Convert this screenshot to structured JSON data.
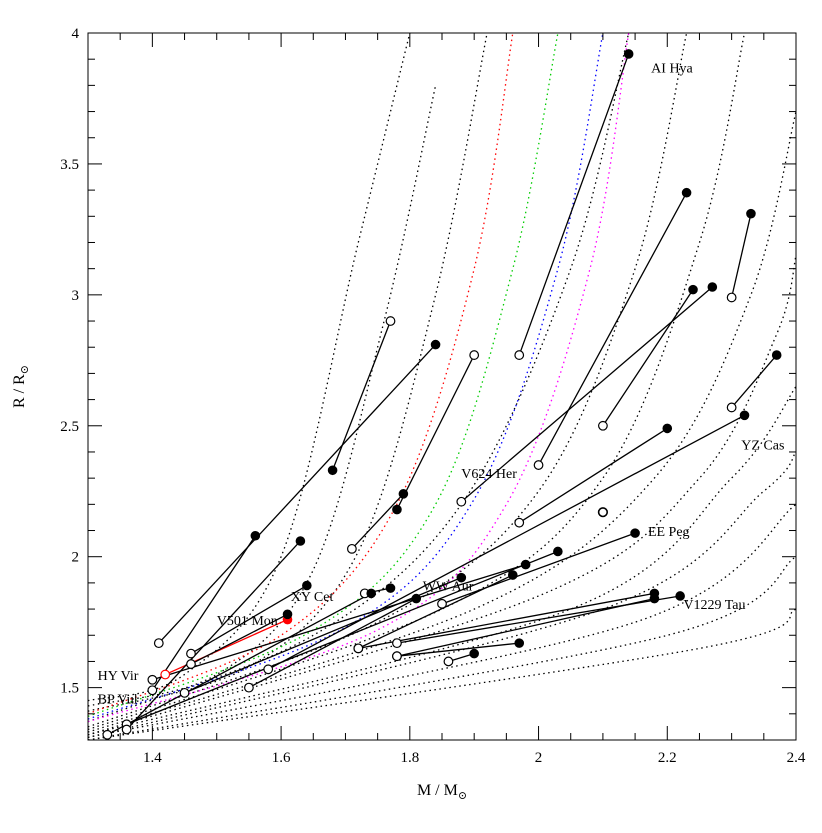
{
  "chart_data": {
    "type": "scatter",
    "xlabel": "M / M",
    "ylabel": "R / R",
    "xlim": [
      1.3,
      2.4
    ],
    "ylim": [
      1.3,
      4.0
    ],
    "x_ticks": [
      "1.4",
      "1.6",
      "1.8",
      "2",
      "2.2",
      "2.4"
    ],
    "y_ticks": [
      "1.5",
      "2",
      "2.5",
      "3",
      "3.5",
      "4"
    ],
    "grid": false,
    "legend": "none",
    "filled_color": "#000000",
    "open_color": "#000000",
    "highlight_color": "#ff0000",
    "systems": [
      {
        "label": "",
        "color": "#000000",
        "primary": [
          1.68,
          2.33
        ],
        "secondary": [
          1.77,
          2.9
        ]
      },
      {
        "label": "",
        "color": "#000000",
        "primary": [
          1.84,
          2.81
        ],
        "secondary": [
          1.41,
          1.67
        ]
      },
      {
        "label": "",
        "color": "#000000",
        "primary": [
          1.78,
          2.18
        ],
        "secondary": [
          1.9,
          2.77
        ]
      },
      {
        "label": "",
        "color": "#000000",
        "primary": [
          1.79,
          2.24
        ],
        "secondary": [
          1.71,
          2.03
        ]
      },
      {
        "label": "AI Hya",
        "color": "#000000",
        "primary": [
          2.14,
          3.92
        ],
        "secondary": [
          1.97,
          2.77
        ]
      },
      {
        "label": "",
        "color": "#000000",
        "primary": [
          2.23,
          3.39
        ],
        "secondary": [
          2.0,
          2.35
        ]
      },
      {
        "label": "",
        "color": "#000000",
        "primary": [
          2.33,
          3.31
        ],
        "secondary": [
          2.3,
          2.99
        ]
      },
      {
        "label": "",
        "color": "#000000",
        "primary": [
          2.24,
          3.02
        ],
        "secondary": [
          2.1,
          2.5
        ]
      },
      {
        "label": "V624 Her",
        "color": "#000000",
        "primary": [
          2.27,
          3.03
        ],
        "secondary": [
          1.88,
          2.21
        ]
      },
      {
        "label": "YZ Cas",
        "color": "#000000",
        "primary": [
          2.37,
          2.77
        ],
        "secondary": [
          2.3,
          2.57
        ]
      },
      {
        "label": "",
        "color": "#000000",
        "primary": [
          2.32,
          2.54
        ],
        "secondary": [
          1.58,
          1.57
        ]
      },
      {
        "label": "",
        "color": "#000000",
        "primary": [
          2.2,
          2.49
        ],
        "secondary": [
          1.97,
          2.13
        ]
      },
      {
        "label": "EE Peg",
        "color": "#000000",
        "primary": [
          2.15,
          2.09
        ],
        "secondary": [
          1.85,
          1.82
        ]
      },
      {
        "label": "",
        "color": "#000000",
        "primary": [
          2.03,
          2.02
        ],
        "secondary": [
          1.36,
          1.36
        ]
      },
      {
        "label": "",
        "color": "#000000",
        "primary": [
          1.98,
          1.97
        ],
        "secondary": [
          1.4,
          1.53
        ]
      },
      {
        "label": "WW Aur",
        "color": "#000000",
        "primary": [
          1.96,
          1.93
        ],
        "secondary": [
          1.72,
          1.65
        ]
      },
      {
        "label": "",
        "color": "#000000",
        "primary": [
          1.88,
          1.92
        ],
        "secondary": [
          1.45,
          1.48
        ]
      },
      {
        "label": "",
        "color": "#000000",
        "primary": [
          1.81,
          1.84
        ],
        "secondary": [
          1.55,
          1.5
        ]
      },
      {
        "label": "XY Cet",
        "color": "#000000",
        "primary": [
          1.77,
          1.88
        ],
        "secondary": [
          1.73,
          1.86
        ]
      },
      {
        "label": "",
        "color": "#000000",
        "primary": [
          1.74,
          1.86
        ],
        "secondary": [
          1.33,
          1.32
        ]
      },
      {
        "label": "",
        "color": "#000000",
        "primary": [
          1.64,
          1.89
        ],
        "secondary": [
          1.46,
          1.63
        ]
      },
      {
        "label": "V501 Mon",
        "color": "#ff0000",
        "primary": [
          1.61,
          1.76
        ],
        "secondary": [
          1.42,
          1.55
        ]
      },
      {
        "label": "",
        "color": "#000000",
        "primary": [
          1.61,
          1.78
        ],
        "secondary": [
          1.46,
          1.59
        ]
      },
      {
        "label": "HY Vir",
        "color": "#000000",
        "primary": [
          1.56,
          2.08
        ],
        "secondary": [
          1.4,
          1.49
        ]
      },
      {
        "label": "BP Vul",
        "color": "#000000",
        "primary": [
          1.63,
          2.06
        ],
        "secondary": [
          1.36,
          1.34
        ]
      },
      {
        "label": "",
        "color": "#000000",
        "primary": [
          2.18,
          1.86
        ],
        "secondary": [
          1.72,
          1.65
        ]
      },
      {
        "label": "V1229 Tau",
        "color": "#000000",
        "primary": [
          2.22,
          1.85
        ],
        "secondary": [
          1.78,
          1.67
        ]
      },
      {
        "label": "",
        "color": "#000000",
        "primary": [
          2.18,
          1.84
        ],
        "secondary": [
          1.78,
          1.62
        ]
      },
      {
        "label": "",
        "color": "#000000",
        "primary": [
          1.9,
          1.63
        ],
        "secondary": [
          1.86,
          1.6
        ]
      },
      {
        "label": "",
        "color": "#000000",
        "primary": [
          1.97,
          1.67
        ],
        "secondary": [
          1.78,
          1.62
        ]
      }
    ],
    "isolated_open": [
      [
        2.1,
        2.17
      ]
    ],
    "isochrones_black": [
      {
        "color": "#000000",
        "x": [
          1.3,
          1.45,
          1.6,
          1.72,
          1.8
        ],
        "y": [
          1.45,
          1.55,
          2.0,
          3.2,
          4.0
        ]
      },
      {
        "color": "#000000",
        "x": [
          1.3,
          1.5,
          1.65,
          1.76,
          1.84
        ],
        "y": [
          1.43,
          1.55,
          1.95,
          2.9,
          3.8
        ]
      },
      {
        "color": "#000000",
        "x": [
          1.3,
          1.55,
          1.72,
          1.84,
          1.92
        ],
        "y": [
          1.41,
          1.58,
          2.02,
          3.0,
          4.0
        ]
      },
      {
        "color": "#000000",
        "x": [
          1.3,
          1.65,
          1.88,
          2.05,
          2.14
        ],
        "y": [
          1.37,
          1.7,
          2.2,
          3.1,
          4.0
        ]
      },
      {
        "color": "#000000",
        "x": [
          1.3,
          1.75,
          2.0,
          2.15,
          2.23
        ],
        "y": [
          1.35,
          1.75,
          2.25,
          3.1,
          4.0
        ]
      },
      {
        "color": "#000000",
        "x": [
          1.3,
          1.85,
          2.1,
          2.25,
          2.32
        ],
        "y": [
          1.34,
          1.8,
          2.3,
          3.2,
          4.0
        ]
      },
      {
        "color": "#000000",
        "x": [
          1.3,
          1.9,
          2.18,
          2.33,
          2.4
        ],
        "y": [
          1.33,
          1.8,
          2.3,
          3.0,
          3.7
        ]
      },
      {
        "color": "#000000",
        "x": [
          1.3,
          2.0,
          2.25,
          2.37,
          2.4
        ],
        "y": [
          1.32,
          1.85,
          2.3,
          2.85,
          3.15
        ]
      },
      {
        "color": "#000000",
        "x": [
          1.3,
          2.05,
          2.3,
          2.4
        ],
        "y": [
          1.32,
          1.8,
          2.3,
          2.65
        ]
      },
      {
        "color": "#000000",
        "x": [
          1.3,
          2.1,
          2.35,
          2.4
        ],
        "y": [
          1.31,
          1.8,
          2.25,
          2.4
        ]
      },
      {
        "color": "#000000",
        "x": [
          1.3,
          2.15,
          2.4
        ],
        "y": [
          1.31,
          1.75,
          2.2
        ]
      },
      {
        "color": "#000000",
        "x": [
          1.3,
          2.2,
          2.4
        ],
        "y": [
          1.3,
          1.7,
          2.0
        ]
      },
      {
        "color": "#000000",
        "x": [
          1.3,
          2.25,
          2.4
        ],
        "y": [
          1.3,
          1.65,
          1.8
        ]
      }
    ],
    "isochrones_color": [
      {
        "color": "#ff0000",
        "x": [
          1.3,
          1.6,
          1.78,
          1.9,
          1.96
        ],
        "y": [
          1.4,
          1.7,
          2.2,
          3.1,
          4.0
        ]
      },
      {
        "color": "#00cc00",
        "x": [
          1.3,
          1.65,
          1.84,
          1.96,
          2.03
        ],
        "y": [
          1.39,
          1.72,
          2.2,
          3.1,
          4.0
        ]
      },
      {
        "color": "#0000ff",
        "x": [
          1.3,
          1.7,
          1.9,
          2.03,
          2.1
        ],
        "y": [
          1.38,
          1.73,
          2.22,
          3.1,
          4.0
        ]
      },
      {
        "color": "#ff00ff",
        "x": [
          1.3,
          1.75,
          1.95,
          2.08,
          2.14
        ],
        "y": [
          1.37,
          1.72,
          2.2,
          3.1,
          4.0
        ]
      }
    ],
    "labels": [
      {
        "text": "AI Hya",
        "x": 2.175,
        "y": 3.85
      },
      {
        "text": "V624 Her",
        "x": 1.88,
        "y": 2.3
      },
      {
        "text": "YZ Cas",
        "x": 2.315,
        "y": 2.41
      },
      {
        "text": "EE Peg",
        "x": 2.17,
        "y": 2.08
      },
      {
        "text": "WW Aur",
        "x": 1.82,
        "y": 1.87
      },
      {
        "text": "XY Cet",
        "x": 1.615,
        "y": 1.83
      },
      {
        "text": "V501 Mon",
        "x": 1.5,
        "y": 1.74
      },
      {
        "text": "V1229 Tau",
        "x": 2.225,
        "y": 1.8
      },
      {
        "text": "HY Vir",
        "x": 1.315,
        "y": 1.53
      },
      {
        "text": "BP Vul",
        "x": 1.315,
        "y": 1.44
      }
    ]
  }
}
